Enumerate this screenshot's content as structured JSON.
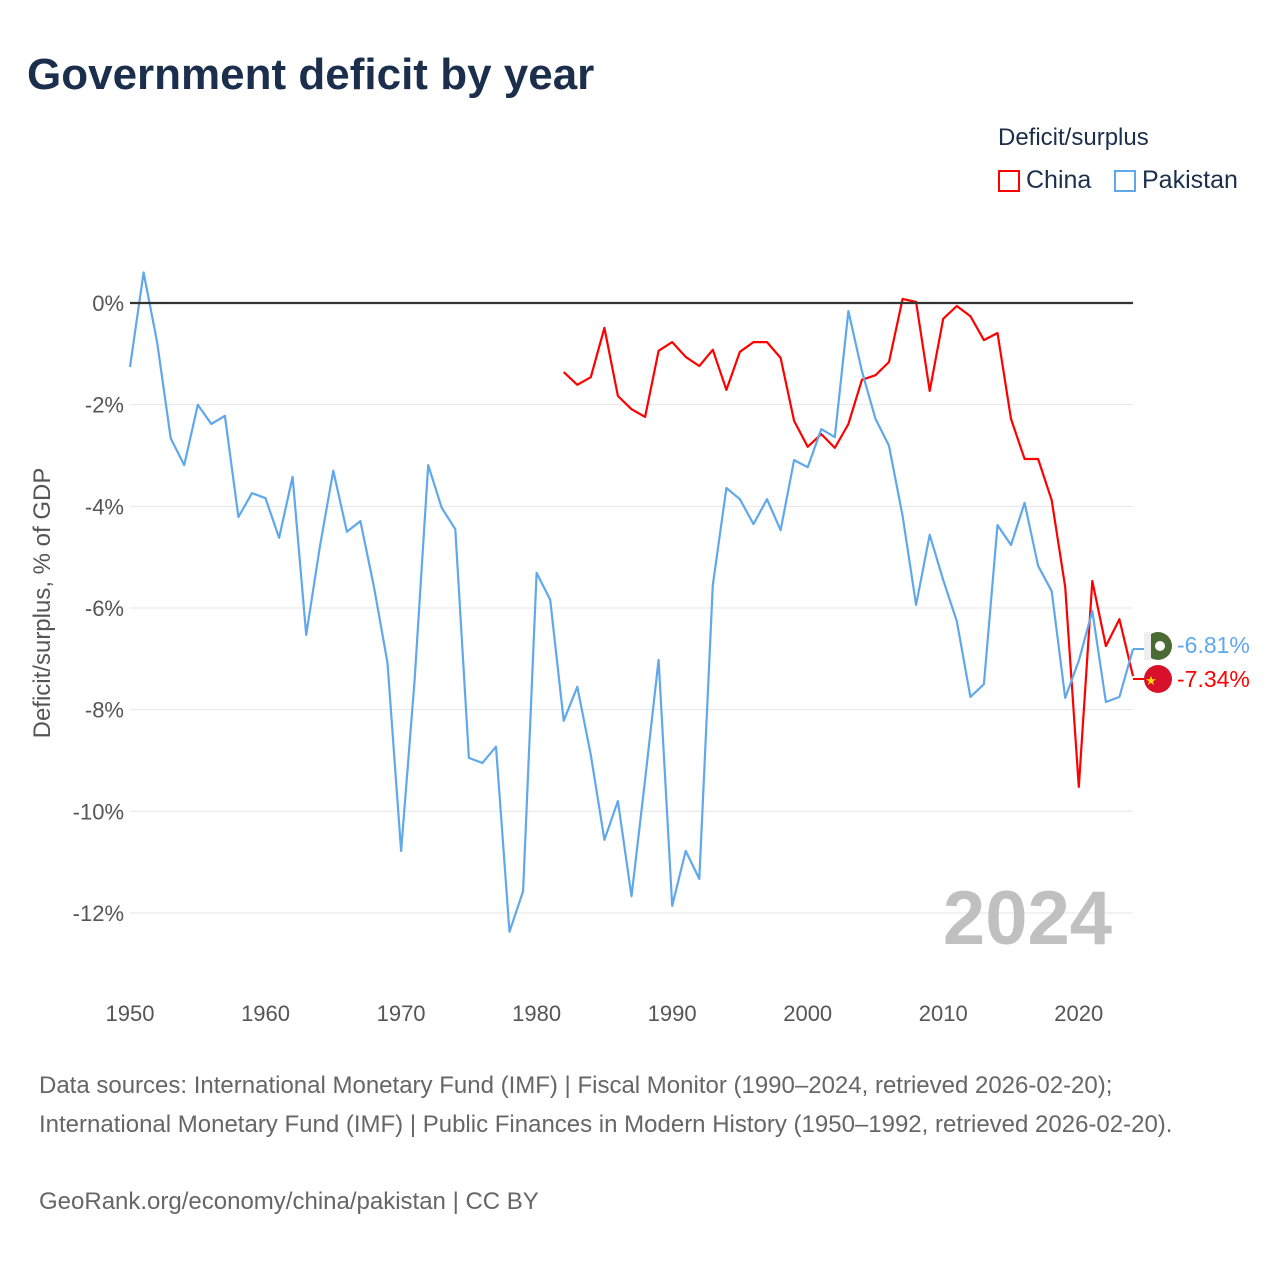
{
  "title": "Government deficit by year",
  "legend": {
    "title": "Deficit/surplus",
    "items": [
      {
        "label": "China",
        "color": "#ff0000"
      },
      {
        "label": "Pakistan",
        "color": "#5fa8ec"
      }
    ]
  },
  "year_watermark": "2024",
  "end_labels": {
    "pakistan": "-6.81%",
    "china": "-7.34%"
  },
  "footer": {
    "sources": "Data sources: International Monetary Fund (IMF) | Fiscal Monitor (1990–2024, retrieved 2026-02-20); International Monetary Fund (IMF) | Public Finances in Modern History (1950–1992, retrieved 2026-02-20).",
    "credit": "GeoRank.org/economy/china/pakistan | CC BY"
  },
  "chart_data": {
    "type": "line",
    "title": "Government deficit by year",
    "xlabel": "",
    "ylabel": "Deficit/surplus, % of GDP",
    "xlim": [
      1950,
      2024
    ],
    "ylim": [
      -13,
      1
    ],
    "xticks": [
      1950,
      1960,
      1970,
      1980,
      1990,
      2000,
      2010,
      2020
    ],
    "yticks": [
      0,
      -2,
      -4,
      -6,
      -8,
      -10,
      -12
    ],
    "ytick_labels": [
      "0%",
      "-2%",
      "-4%",
      "-6%",
      "-8%",
      "-10%",
      "-12%"
    ],
    "grid": true,
    "legend_position": "top-right",
    "series": [
      {
        "name": "China",
        "color": "#ff0000",
        "start": 1982,
        "values": [
          -1.36,
          -1.61,
          -1.46,
          -0.49,
          -1.83,
          -2.09,
          -2.24,
          -0.94,
          -0.77,
          -1.06,
          -1.24,
          -0.92,
          -1.71,
          -0.96,
          -0.77,
          -0.77,
          -1.08,
          -2.32,
          -2.83,
          -2.58,
          -2.85,
          -2.38,
          -1.51,
          -1.42,
          -1.16,
          0.08,
          0.02,
          -1.73,
          -0.31,
          -0.06,
          -0.26,
          -0.73,
          -0.59,
          -2.28,
          -3.07,
          -3.07,
          -3.88,
          -5.59,
          -9.52,
          -5.47,
          -6.75,
          -6.22,
          -7.34
        ]
      },
      {
        "name": "Pakistan",
        "color": "#5fa8ec",
        "start": 1950,
        "values": [
          -1.26,
          0.6,
          -0.77,
          -2.66,
          -3.19,
          -2.0,
          -2.38,
          -2.22,
          -4.21,
          -3.74,
          -3.84,
          -4.62,
          -3.42,
          -6.53,
          -4.8,
          -3.3,
          -4.5,
          -4.29,
          -5.59,
          -7.08,
          -10.78,
          -7.42,
          -3.19,
          -4.03,
          -4.45,
          -8.95,
          -9.05,
          -8.73,
          -12.37,
          -11.57,
          -5.31,
          -5.84,
          -8.22,
          -7.55,
          -8.89,
          -10.56,
          -9.8,
          -11.67,
          -9.38,
          -7.02,
          -11.86,
          -10.78,
          -11.33,
          -5.55,
          -3.64,
          -3.86,
          -4.35,
          -3.86,
          -4.47,
          -3.09,
          -3.23,
          -2.48,
          -2.64,
          -0.16,
          -1.34,
          -2.28,
          -2.81,
          -4.19,
          -5.94,
          -4.56,
          -5.45,
          -6.26,
          -7.75,
          -7.5,
          -4.37,
          -4.76,
          -3.93,
          -5.17,
          -5.67,
          -7.77,
          -7.04,
          -6.06,
          -7.85,
          -7.75,
          -6.81
        ]
      }
    ]
  }
}
